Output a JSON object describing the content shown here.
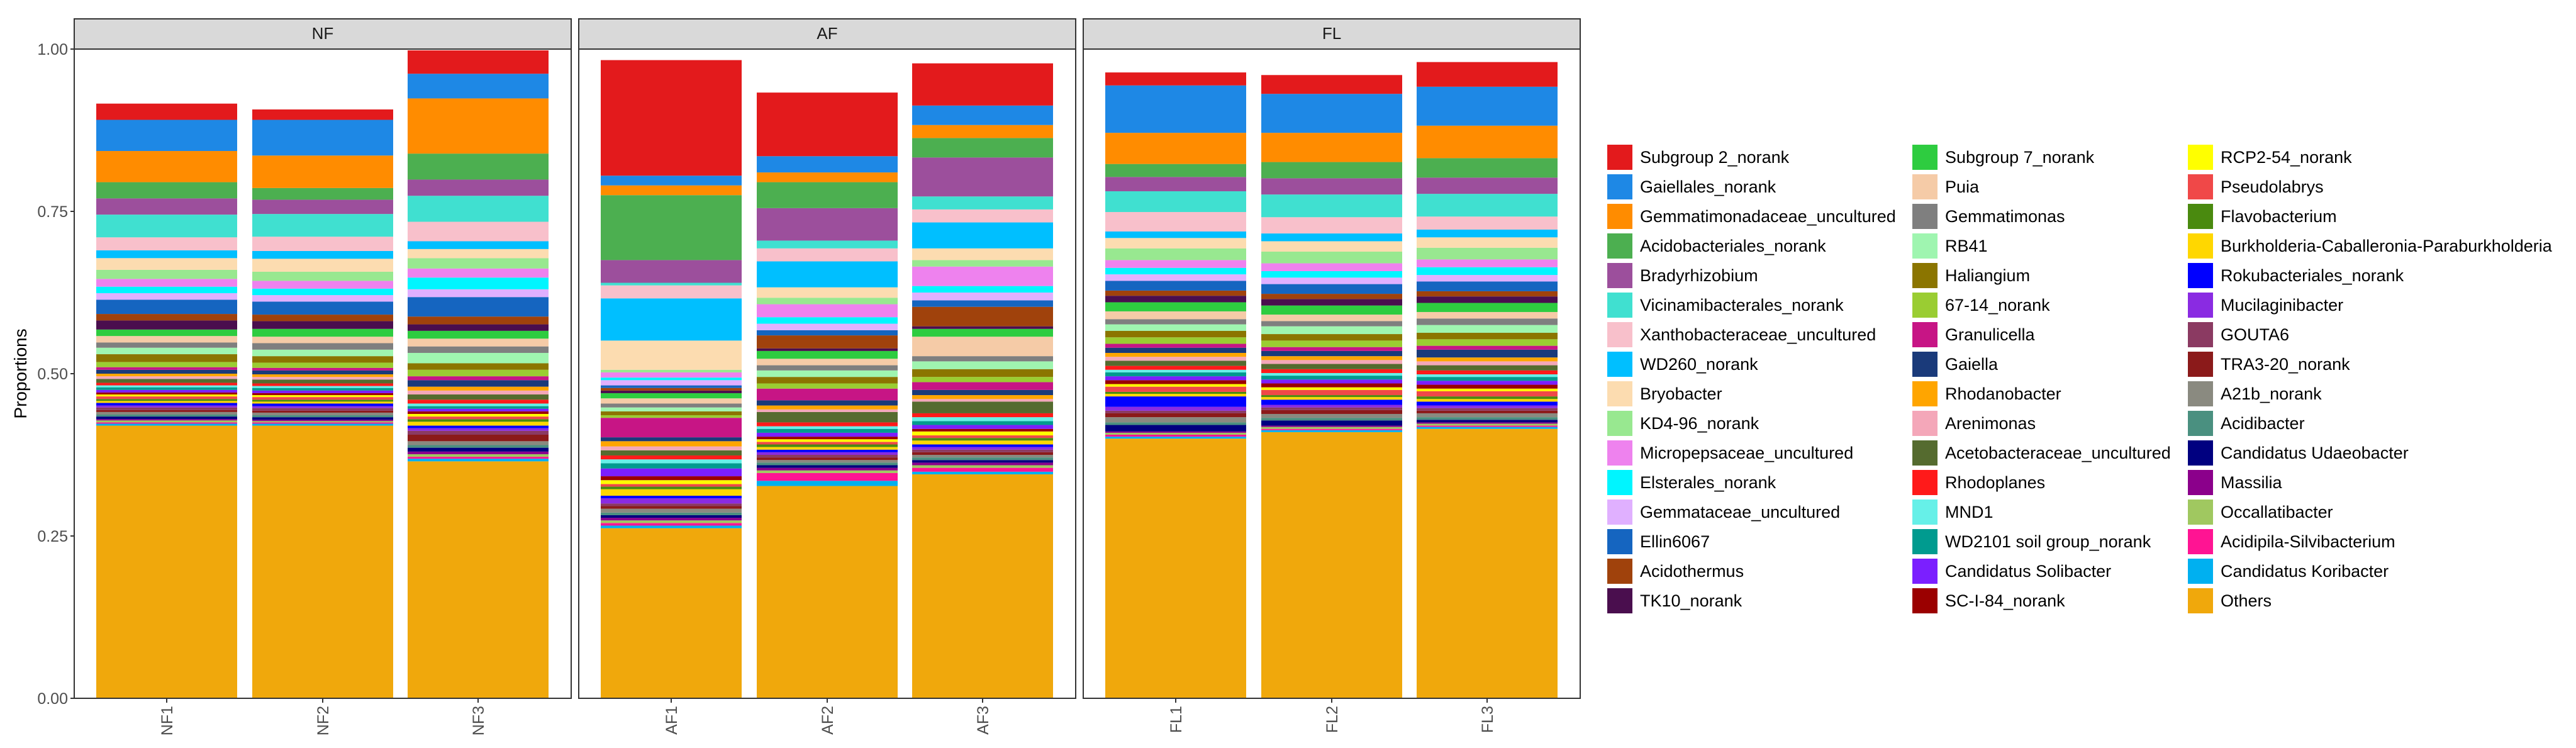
{
  "chart_data": {
    "type": "stacked_bar",
    "ylabel": "Proportions",
    "xlabel": "",
    "ylim": [
      0,
      1
    ],
    "yticks": [
      "0.00",
      "0.25",
      "0.50",
      "0.75",
      "1.00"
    ],
    "facets": [
      {
        "label": "NF",
        "samples": [
          "NF1",
          "NF2",
          "NF3"
        ]
      },
      {
        "label": "AF",
        "samples": [
          "AF1",
          "AF2",
          "AF3"
        ]
      },
      {
        "label": "FL",
        "samples": [
          "FL1",
          "FL2",
          "FL3"
        ]
      }
    ],
    "legend": {
      "position": "right",
      "columns": 3,
      "entries": [
        {
          "name": "Subgroup 2_norank",
          "color": "#e31a1c"
        },
        {
          "name": "Gaiellales_norank",
          "color": "#1e88e5"
        },
        {
          "name": "Gemmatimonadaceae_uncultured",
          "color": "#ff8c00"
        },
        {
          "name": "Acidobacteriales_norank",
          "color": "#4caf50"
        },
        {
          "name": "Bradyrhizobium",
          "color": "#9c4f9c"
        },
        {
          "name": "Vicinamibacterales_norank",
          "color": "#40e0d0"
        },
        {
          "name": "Xanthobacteraceae_uncultured",
          "color": "#f8c0cb"
        },
        {
          "name": "WD260_norank",
          "color": "#00bfff"
        },
        {
          "name": "Bryobacter",
          "color": "#fcdcb0"
        },
        {
          "name": "KD4-96_norank",
          "color": "#98e890"
        },
        {
          "name": "Micropepsaceae_uncultured",
          "color": "#ee82ee"
        },
        {
          "name": "Elsterales_norank",
          "color": "#00f5ff"
        },
        {
          "name": "Gemmataceae_uncultured",
          "color": "#e0b0ff"
        },
        {
          "name": "Ellin6067",
          "color": "#1565c0"
        },
        {
          "name": "Acidothermus",
          "color": "#a0420c"
        },
        {
          "name": "TK10_norank",
          "color": "#4a0e4e"
        },
        {
          "name": "Subgroup 7_norank",
          "color": "#2ecc40"
        },
        {
          "name": "Puia",
          "color": "#f5cba7"
        },
        {
          "name": "Gemmatimonas",
          "color": "#7f7f7f"
        },
        {
          "name": "RB41",
          "color": "#9ff5b0"
        },
        {
          "name": "Haliangium",
          "color": "#8b7500"
        },
        {
          "name": "67-14_norank",
          "color": "#9acd32"
        },
        {
          "name": "Granulicella",
          "color": "#c71585"
        },
        {
          "name": "Gaiella",
          "color": "#1a3a7a"
        },
        {
          "name": "Rhodanobacter",
          "color": "#ffa500"
        },
        {
          "name": "Arenimonas",
          "color": "#f4a7b9"
        },
        {
          "name": "Acetobacteraceae_uncultured",
          "color": "#556b2f"
        },
        {
          "name": "Rhodoplanes",
          "color": "#ff1a1a"
        },
        {
          "name": "MND1",
          "color": "#66f0e8"
        },
        {
          "name": "WD2101 soil group_norank",
          "color": "#009b8f"
        },
        {
          "name": "Candidatus Solibacter",
          "color": "#7b1fff"
        },
        {
          "name": "SC-I-84_norank",
          "color": "#9b0000"
        },
        {
          "name": "RCP2-54_norank",
          "color": "#ffff00"
        },
        {
          "name": "Pseudolabrys",
          "color": "#f04848"
        },
        {
          "name": "Flavobacterium",
          "color": "#4a8a0f"
        },
        {
          "name": "Burkholderia-Caballeronia-Paraburkholderia",
          "color": "#ffd700"
        },
        {
          "name": "Rokubacteriales_norank",
          "color": "#0000ff"
        },
        {
          "name": "Mucilaginibacter",
          "color": "#8a2be2"
        },
        {
          "name": "GOUTA6",
          "color": "#8b3a62"
        },
        {
          "name": "TRA3-20_norank",
          "color": "#8b1a1a"
        },
        {
          "name": "A21b_norank",
          "color": "#8a8a80"
        },
        {
          "name": "Acidibacter",
          "color": "#4a9080"
        },
        {
          "name": "Candidatus Udaeobacter",
          "color": "#000080"
        },
        {
          "name": "Massilia",
          "color": "#8b008b"
        },
        {
          "name": "Occallatibacter",
          "color": "#a0c860"
        },
        {
          "name": "Acidipila-Silvibacterium",
          "color": "#ff1493"
        },
        {
          "name": "Candidatus Koribacter",
          "color": "#00b0f0"
        },
        {
          "name": "Others",
          "color": "#f0a80c"
        }
      ]
    },
    "series": [
      {
        "name": "Others",
        "values": [
          0.42,
          0.42,
          0.365,
          0.262,
          0.327,
          0.345,
          0.4,
          0.41,
          0.415
        ]
      },
      {
        "name": "Candidatus Koribacter",
        "values": [
          0.003,
          0.003,
          0.004,
          0.004,
          0.008,
          0.004,
          0.003,
          0.003,
          0.003
        ]
      },
      {
        "name": "Acidipila-Silvibacterium",
        "values": [
          0.002,
          0.002,
          0.003,
          0.004,
          0.012,
          0.006,
          0.003,
          0.002,
          0.002
        ]
      },
      {
        "name": "Occallatibacter",
        "values": [
          0.003,
          0.002,
          0.004,
          0.004,
          0.004,
          0.004,
          0.003,
          0.003,
          0.003
        ]
      },
      {
        "name": "Massilia",
        "values": [
          0.002,
          0.002,
          0.004,
          0.004,
          0.004,
          0.004,
          0.002,
          0.002,
          0.002
        ]
      },
      {
        "name": "Candidatus Udaeobacter",
        "values": [
          0.004,
          0.004,
          0.006,
          0.004,
          0.004,
          0.004,
          0.01,
          0.008,
          0.004
        ]
      },
      {
        "name": "Acidibacter",
        "values": [
          0.003,
          0.003,
          0.004,
          0.004,
          0.004,
          0.004,
          0.004,
          0.004,
          0.004
        ]
      },
      {
        "name": "A21b_norank",
        "values": [
          0.004,
          0.004,
          0.006,
          0.006,
          0.004,
          0.004,
          0.008,
          0.006,
          0.006
        ]
      },
      {
        "name": "TRA3-20_norank",
        "values": [
          0.003,
          0.003,
          0.01,
          0.004,
          0.004,
          0.004,
          0.006,
          0.006,
          0.004
        ]
      },
      {
        "name": "GOUTA6",
        "values": [
          0.004,
          0.004,
          0.006,
          0.004,
          0.004,
          0.004,
          0.004,
          0.004,
          0.004
        ]
      },
      {
        "name": "Mucilaginibacter",
        "values": [
          0.003,
          0.003,
          0.004,
          0.008,
          0.004,
          0.004,
          0.006,
          0.004,
          0.004
        ]
      },
      {
        "name": "Rokubacteriales_norank",
        "values": [
          0.004,
          0.004,
          0.004,
          0.004,
          0.004,
          0.004,
          0.016,
          0.008,
          0.006
        ]
      },
      {
        "name": "Burkholderia-Caballeronia-Paraburkholderia",
        "values": [
          0.003,
          0.003,
          0.006,
          0.01,
          0.004,
          0.006,
          0.004,
          0.004,
          0.004
        ]
      },
      {
        "name": "Flavobacterium",
        "values": [
          0.003,
          0.003,
          0.004,
          0.004,
          0.004,
          0.004,
          0.003,
          0.003,
          0.004
        ]
      },
      {
        "name": "Pseudolabrys",
        "values": [
          0.004,
          0.004,
          0.004,
          0.004,
          0.004,
          0.004,
          0.008,
          0.008,
          0.008
        ]
      },
      {
        "name": "RCP2-54_norank",
        "values": [
          0.003,
          0.003,
          0.004,
          0.006,
          0.004,
          0.006,
          0.004,
          0.004,
          0.004
        ]
      },
      {
        "name": "SC-I-84_norank",
        "values": [
          0.003,
          0.003,
          0.004,
          0.006,
          0.004,
          0.004,
          0.006,
          0.006,
          0.006
        ]
      },
      {
        "name": "Candidatus Solibacter",
        "values": [
          0.004,
          0.004,
          0.004,
          0.012,
          0.006,
          0.006,
          0.006,
          0.006,
          0.006
        ]
      },
      {
        "name": "WD2101 soil group_norank",
        "values": [
          0.004,
          0.004,
          0.004,
          0.008,
          0.006,
          0.006,
          0.006,
          0.006,
          0.006
        ]
      },
      {
        "name": "MND1",
        "values": [
          0.003,
          0.003,
          0.004,
          0.006,
          0.004,
          0.006,
          0.004,
          0.004,
          0.004
        ]
      },
      {
        "name": "Rhodoplanes",
        "values": [
          0.004,
          0.004,
          0.006,
          0.006,
          0.006,
          0.006,
          0.006,
          0.006,
          0.006
        ]
      },
      {
        "name": "Acetobacteraceae_uncultured",
        "values": [
          0.006,
          0.006,
          0.008,
          0.008,
          0.016,
          0.018,
          0.008,
          0.008,
          0.008
        ]
      },
      {
        "name": "Arenimonas",
        "values": [
          0.004,
          0.004,
          0.006,
          0.006,
          0.004,
          0.004,
          0.006,
          0.006,
          0.006
        ]
      },
      {
        "name": "Rhodanobacter",
        "values": [
          0.004,
          0.004,
          0.006,
          0.008,
          0.006,
          0.006,
          0.006,
          0.006,
          0.006
        ]
      },
      {
        "name": "Gaiella",
        "values": [
          0.006,
          0.006,
          0.01,
          0.006,
          0.008,
          0.008,
          0.008,
          0.008,
          0.012
        ]
      },
      {
        "name": "Granulicella",
        "values": [
          0.004,
          0.004,
          0.006,
          0.03,
          0.018,
          0.012,
          0.006,
          0.006,
          0.006
        ]
      },
      {
        "name": "67-14_norank",
        "values": [
          0.008,
          0.008,
          0.01,
          0.004,
          0.008,
          0.008,
          0.01,
          0.01,
          0.01
        ]
      },
      {
        "name": "Haliangium",
        "values": [
          0.012,
          0.01,
          0.01,
          0.006,
          0.01,
          0.012,
          0.01,
          0.01,
          0.01
        ]
      },
      {
        "name": "RB41",
        "values": [
          0.01,
          0.01,
          0.016,
          0.006,
          0.01,
          0.012,
          0.01,
          0.012,
          0.012
        ]
      },
      {
        "name": "Gemmatimonas",
        "values": [
          0.008,
          0.01,
          0.01,
          0.006,
          0.008,
          0.008,
          0.008,
          0.008,
          0.01
        ]
      },
      {
        "name": "Puia",
        "values": [
          0.01,
          0.01,
          0.012,
          0.008,
          0.01,
          0.03,
          0.012,
          0.01,
          0.01
        ]
      },
      {
        "name": "Subgroup 7_norank",
        "values": [
          0.01,
          0.012,
          0.012,
          0.008,
          0.012,
          0.012,
          0.014,
          0.014,
          0.014
        ]
      },
      {
        "name": "TK10_norank",
        "values": [
          0.014,
          0.012,
          0.01,
          0.004,
          0.004,
          0.004,
          0.01,
          0.01,
          0.01
        ]
      },
      {
        "name": "Acidothermus",
        "values": [
          0.01,
          0.01,
          0.012,
          0.004,
          0.02,
          0.03,
          0.008,
          0.008,
          0.008
        ]
      },
      {
        "name": "Ellin6067",
        "values": [
          0.022,
          0.02,
          0.03,
          0.004,
          0.008,
          0.01,
          0.015,
          0.015,
          0.015
        ]
      },
      {
        "name": "Gemmataceae_uncultured",
        "values": [
          0.01,
          0.01,
          0.012,
          0.008,
          0.01,
          0.012,
          0.01,
          0.01,
          0.01
        ]
      },
      {
        "name": "Elsterales_norank",
        "values": [
          0.01,
          0.01,
          0.018,
          0.004,
          0.01,
          0.01,
          0.01,
          0.01,
          0.012
        ]
      },
      {
        "name": "Micropepsaceae_uncultured",
        "values": [
          0.012,
          0.012,
          0.014,
          0.008,
          0.02,
          0.03,
          0.012,
          0.012,
          0.012
        ]
      },
      {
        "name": "KD4-96_norank",
        "values": [
          0.014,
          0.014,
          0.016,
          0.004,
          0.01,
          0.01,
          0.018,
          0.018,
          0.018
        ]
      },
      {
        "name": "Bryobacter",
        "values": [
          0.018,
          0.02,
          0.014,
          0.045,
          0.016,
          0.018,
          0.016,
          0.016,
          0.016
        ]
      },
      {
        "name": "WD260_norank",
        "values": [
          0.012,
          0.012,
          0.012,
          0.065,
          0.04,
          0.04,
          0.01,
          0.012,
          0.012
        ]
      },
      {
        "name": "Xanthobacteraceae_uncultured",
        "values": [
          0.02,
          0.022,
          0.03,
          0.02,
          0.02,
          0.02,
          0.03,
          0.025,
          0.02
        ]
      },
      {
        "name": "Vicinamibacterales_norank",
        "values": [
          0.035,
          0.035,
          0.04,
          0.004,
          0.012,
          0.02,
          0.032,
          0.035,
          0.035
        ]
      },
      {
        "name": "Bradyrhizobium",
        "values": [
          0.025,
          0.022,
          0.025,
          0.035,
          0.05,
          0.06,
          0.022,
          0.025,
          0.025
        ]
      },
      {
        "name": "Acidobacteriales_norank",
        "values": [
          0.025,
          0.018,
          0.04,
          0.1,
          0.04,
          0.03,
          0.02,
          0.025,
          0.03
        ]
      },
      {
        "name": "Gemmatimonadaceae_uncultured",
        "values": [
          0.048,
          0.05,
          0.085,
          0.015,
          0.015,
          0.02,
          0.048,
          0.045,
          0.05
        ]
      },
      {
        "name": "Gaiellales_norank",
        "values": [
          0.048,
          0.055,
          0.038,
          0.015,
          0.025,
          0.03,
          0.073,
          0.06,
          0.06
        ]
      },
      {
        "name": "Subgroup 2_norank",
        "values": [
          0.025,
          0.016,
          0.036,
          0.178,
          0.098,
          0.065,
          0.02,
          0.029,
          0.038
        ]
      }
    ]
  }
}
